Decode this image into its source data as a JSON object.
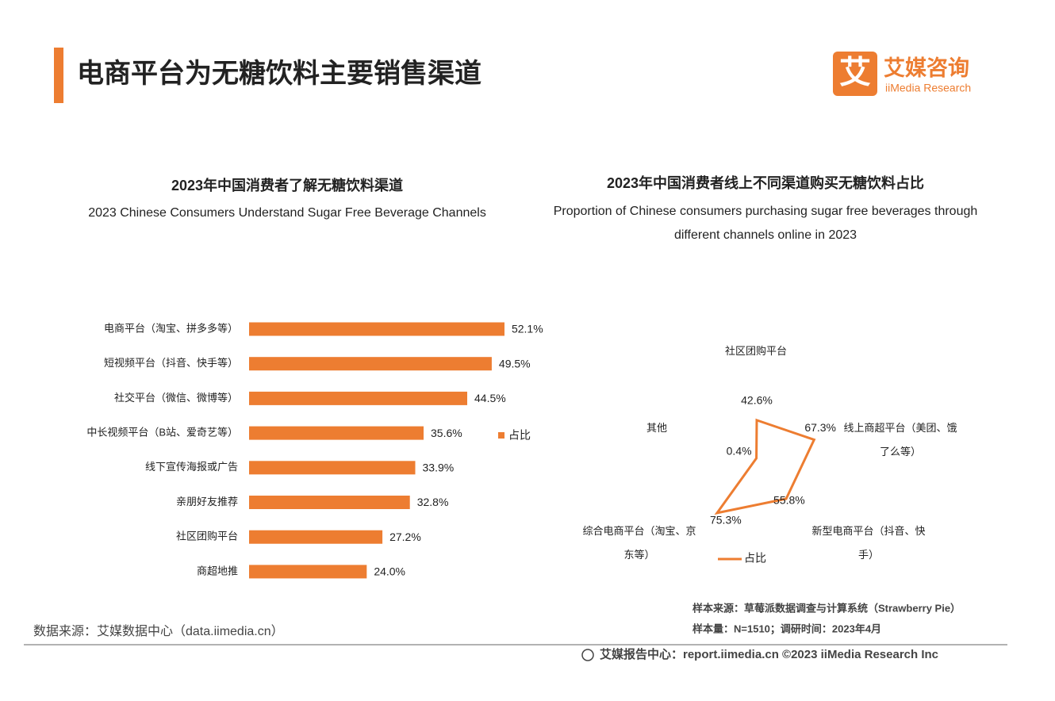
{
  "header": {
    "title": "电商平台为无糖饮料主要销售渠道",
    "logo_icon": "艾",
    "logo_name": "艾媒咨询",
    "logo_en": "iiMedia Research"
  },
  "chart_data": [
    {
      "type": "hbar",
      "title": "2023年中国消费者了解无糖饮料渠道",
      "subtitle": "2023 Chinese Consumers Understand Sugar Free Beverage Channels",
      "categories": [
        "电商平台（淘宝、拼多多等）",
        "短视频平台（抖音、快手等）",
        "社交平台（微信、微博等）",
        "中长视频平台（B站、爱奇艺等）",
        "线下宣传海报或广告",
        "亲朋好友推荐",
        "社区团购平台",
        "商超地推"
      ],
      "series": [
        {
          "name": "占比",
          "color": "#ed7d31",
          "values": [
            52.1,
            49.5,
            44.5,
            35.6,
            33.9,
            32.8,
            27.2,
            24.0
          ],
          "value_labels": [
            "52.1%",
            "49.5%",
            "44.5%",
            "35.6%",
            "33.9%",
            "32.8%",
            "27.2%",
            "24.0%"
          ]
        }
      ],
      "legend": "right"
    },
    {
      "type": "radar",
      "title": "2023年中国消费者线上不同渠道购买无糖饮料占比",
      "subtitle": "Proportion of Chinese consumers purchasing sugar free beverages through different channels online in 2023",
      "categories": [
        "社区团购平台",
        "线上商超平台（美团、饿了么等）",
        "新型电商平台（抖音、快手）",
        "综合电商平台（淘宝、京东等）",
        "其他"
      ],
      "series": [
        {
          "name": "占比",
          "color": "#ed7d31",
          "values": [
            42.6,
            67.3,
            55.8,
            75.3,
            0.4
          ],
          "value_labels": [
            "42.6%",
            "67.3%",
            "55.8%",
            "75.3%",
            "0.4%"
          ]
        }
      ],
      "legend": "bottom"
    }
  ],
  "footer": {
    "source": "数据来源：艾媒数据中心（data.iimedia.cn）",
    "sample_source": "样本来源：草莓派数据调查与计算系统（Strawberry Pie）",
    "sample_size": "样本量：N=1510；调研时间：2023年4月",
    "report": "艾媒报告中心：report.iimedia.cn ©2023 iiMedia Research Inc"
  }
}
